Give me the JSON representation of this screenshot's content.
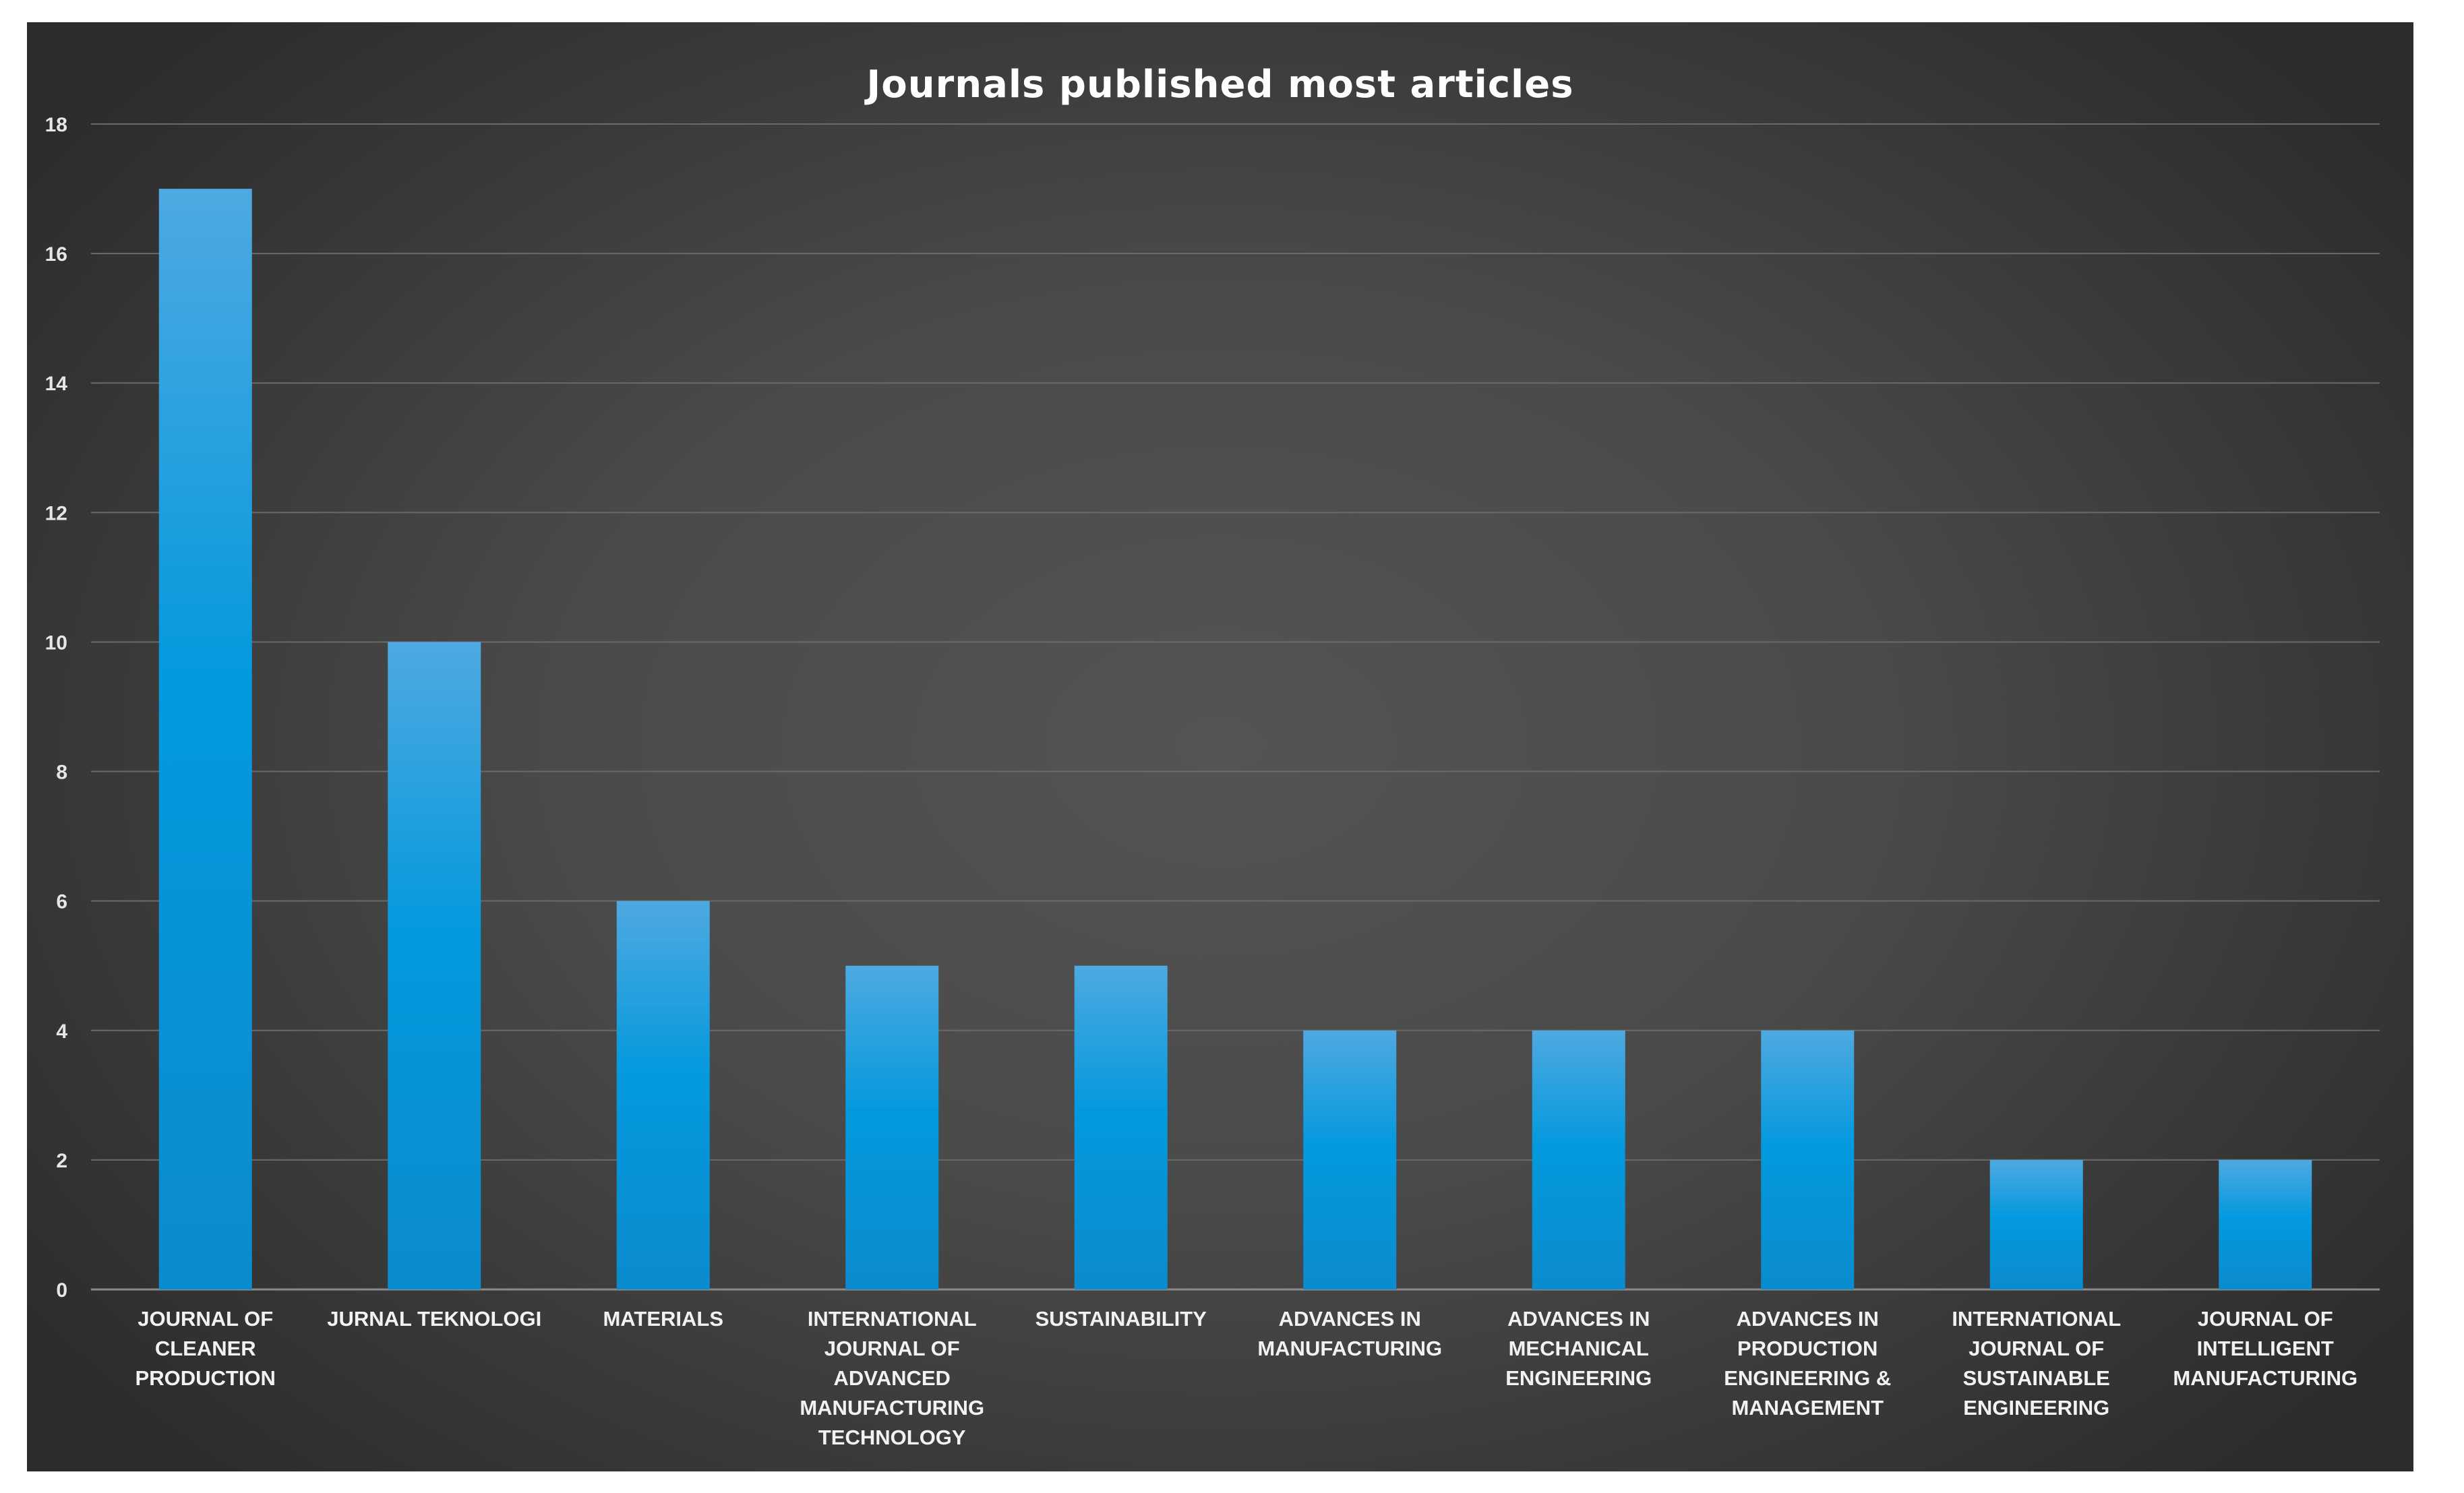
{
  "chart_data": {
    "type": "bar",
    "title": "Journals published most articles",
    "xlabel": "",
    "ylabel": "",
    "ylim": [
      0,
      18
    ],
    "yticks": [
      "0",
      "2",
      "4",
      "6",
      "8",
      "10",
      "12",
      "14",
      "16",
      "18"
    ],
    "grid": true,
    "legend": "none",
    "categories": [
      "JOURNAL OF CLEANER PRODUCTION",
      "JURNAL TEKNOLOGI",
      "MATERIALS",
      "INTERNATIONAL JOURNAL OF ADVANCED MANUFACTURING TECHNOLOGY",
      "SUSTAINABILITY",
      "ADVANCES IN MANUFACTURING",
      "ADVANCES IN MECHANICAL ENGINEERING",
      "ADVANCES IN PRODUCTION ENGINEERING & MANAGEMENT",
      "INTERNATIONAL JOURNAL OF SUSTAINABLE ENGINEERING",
      "JOURNAL OF INTELLIGENT MANUFACTURING"
    ],
    "values": [
      17,
      10,
      6,
      5,
      5,
      4,
      4,
      4,
      2,
      2
    ],
    "colors": {
      "bar_top": "#4ea9e0",
      "bar_mid": "#0096dc",
      "bar_bottom": "#0a8ccf",
      "gridline": "#6a6a6a",
      "background": "#4a4a4a"
    }
  }
}
